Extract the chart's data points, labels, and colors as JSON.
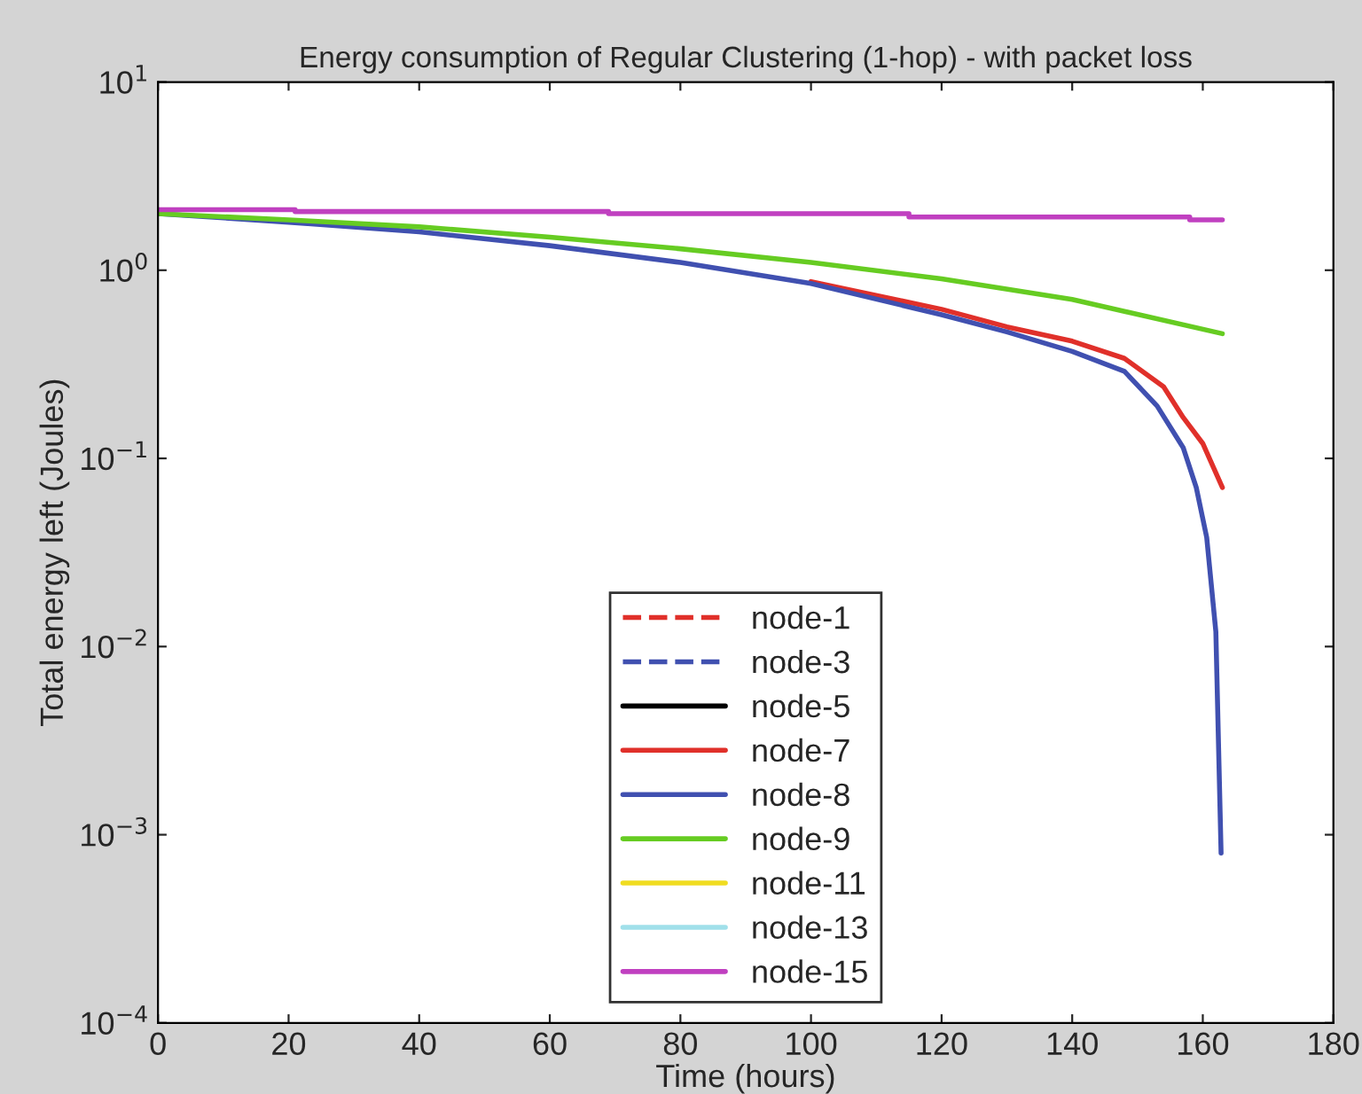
{
  "chart_data": {
    "type": "line",
    "title": "Energy consumption of Regular Clustering (1-hop) - with packet loss",
    "xlabel": "Time (hours)",
    "ylabel": "Total energy left (Joules)",
    "log": "y",
    "xlim": [
      0,
      180
    ],
    "xticks": [
      0,
      20,
      40,
      60,
      80,
      100,
      120,
      140,
      160,
      180
    ],
    "ylim": [
      0.0001,
      10
    ],
    "yticks": [
      {
        "value": 0.0001,
        "label": "10$^{−4}$"
      },
      {
        "value": 0.001,
        "label": "10$^{−3}$"
      },
      {
        "value": 0.01,
        "label": "10$^{−2}$"
      },
      {
        "value": 0.1,
        "label": "10$^{−1}$"
      },
      {
        "value": 1,
        "label": "10$^{0}$"
      },
      {
        "value": 10,
        "label": "10$^{1}$"
      }
    ],
    "grid": false,
    "legend": "bottom",
    "marker": "none",
    "series": [
      {
        "name": "node-1",
        "color": "#e0302a",
        "line_style": "dashed"
      },
      {
        "name": "node-3",
        "color": "#4050b0",
        "line_style": "dashed"
      },
      {
        "name": "node-5",
        "color": "#000000"
      },
      {
        "name": "node-7",
        "color": "#e0302a",
        "x": [
          100,
          120,
          130,
          140,
          148,
          154,
          157,
          160,
          163
        ],
        "values": [
          0.87,
          0.62,
          0.5,
          0.42,
          0.34,
          0.24,
          0.165,
          0.12,
          0.07
        ]
      },
      {
        "name": "node-8",
        "color": "#4050b0",
        "x": [
          0,
          20,
          40,
          60,
          80,
          100,
          120,
          130,
          140,
          148,
          153,
          157,
          159,
          160.6,
          162,
          162.8
        ],
        "values": [
          2.0,
          1.8,
          1.6,
          1.35,
          1.1,
          0.85,
          0.58,
          0.47,
          0.37,
          0.29,
          0.19,
          0.114,
          0.07,
          0.038,
          0.012,
          0.0008
        ]
      },
      {
        "name": "node-9",
        "color": "#66cc22",
        "x": [
          0,
          20,
          40,
          60,
          80,
          100,
          120,
          140,
          163
        ],
        "values": [
          2.0,
          1.85,
          1.7,
          1.5,
          1.3,
          1.1,
          0.9,
          0.7,
          0.46
        ]
      },
      {
        "name": "node-11",
        "color": "#f0dc20"
      },
      {
        "name": "node-13",
        "color": "#a0e0ea"
      },
      {
        "name": "node-15",
        "color": "#c040c0",
        "x": [
          0,
          21,
          21,
          69,
          69,
          115,
          115,
          158,
          158,
          163
        ],
        "values": [
          2.1,
          2.1,
          2.05,
          2.05,
          2.0,
          2.0,
          1.92,
          1.92,
          1.85,
          1.85
        ]
      }
    ]
  }
}
